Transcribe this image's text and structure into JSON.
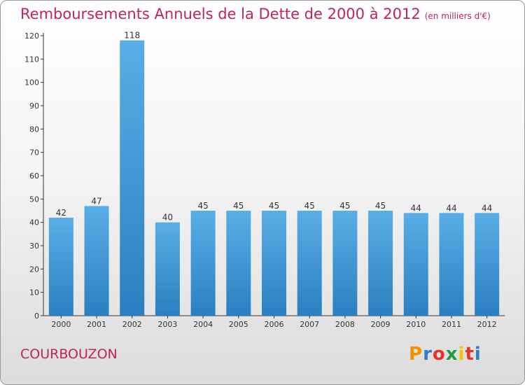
{
  "header": {
    "title": "Remboursements Annuels de la Dette de 2000 à 2012",
    "unit_note": "(en milliers d'€)"
  },
  "footer": {
    "commune": "COURBOUZON",
    "logo_text": "Proxiti"
  },
  "colors": {
    "title": "#c0245c",
    "bar_top": "#5aaee6",
    "bar_bottom": "#2a7fc0",
    "logo_letters": [
      "#f39200",
      "#2e7fc8",
      "#e63329",
      "#1f9a3e",
      "#f2c500",
      "#e63329",
      "#2e7fc8"
    ]
  },
  "chart_data": {
    "type": "bar",
    "categories": [
      "2000",
      "2001",
      "2002",
      "2003",
      "2004",
      "2005",
      "2006",
      "2007",
      "2008",
      "2009",
      "2010",
      "2011",
      "2012"
    ],
    "values": [
      42,
      47,
      118,
      40,
      45,
      45,
      45,
      45,
      45,
      45,
      44,
      44,
      44
    ],
    "data_labels": [
      "42",
      "47",
      "118",
      "40",
      "45",
      "45",
      "45",
      "45",
      "45",
      "45",
      "44",
      "44",
      "44"
    ],
    "yticks": [
      "0",
      "10",
      "20",
      "30",
      "40",
      "50",
      "60",
      "70",
      "80",
      "90",
      "100",
      "110",
      "120"
    ],
    "ylim": [
      0,
      120
    ],
    "grid": false,
    "legend": "none"
  }
}
